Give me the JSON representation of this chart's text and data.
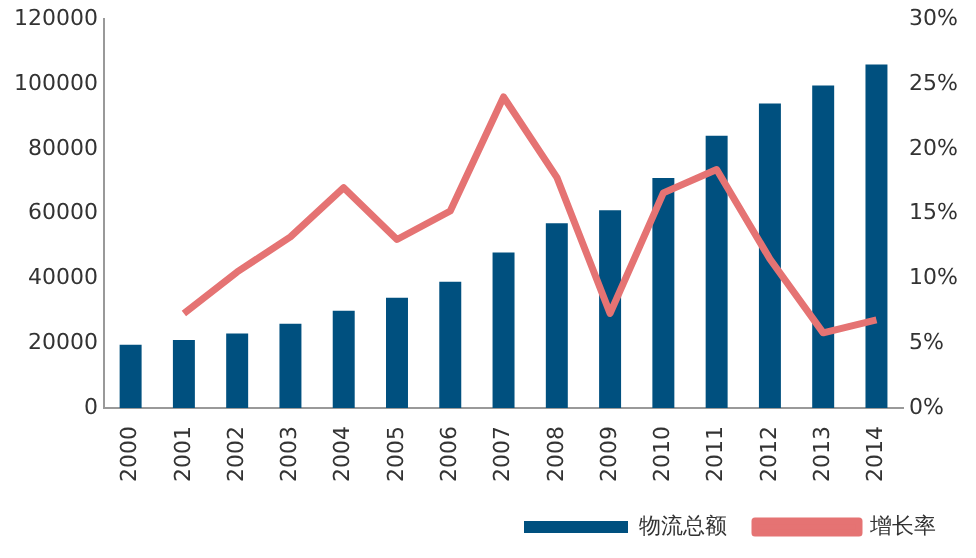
{
  "chart_data": {
    "type": "bar",
    "categories": [
      "2000",
      "2001",
      "2002",
      "2003",
      "2004",
      "2005",
      "2006",
      "2007",
      "2008",
      "2009",
      "2010",
      "2011",
      "2012",
      "2013",
      "2014"
    ],
    "series": [
      {
        "name": "物流总额",
        "color": "#00507f",
        "values": [
          19500,
          21000,
          23000,
          26000,
          30000,
          34000,
          39000,
          48000,
          57000,
          61000,
          71000,
          84000,
          94000,
          99500,
          106000
        ]
      },
      {
        "name": "增长率",
        "type": "line",
        "axis": "y2",
        "color": "#e57373",
        "marker": "none",
        "values": [
          null,
          7.3,
          10.5,
          13.2,
          17,
          13,
          15.2,
          24,
          17.8,
          7.3,
          16.6,
          18.4,
          11.5,
          5.8,
          6.8
        ]
      }
    ],
    "ylim": [
      0,
      120000
    ],
    "yticks": [
      0,
      20000,
      40000,
      60000,
      80000,
      100000,
      120000
    ],
    "y2lim": [
      0,
      30
    ],
    "y2ticks": [
      {
        "value": 0,
        "label": "0%"
      },
      {
        "value": 5,
        "label": "5%"
      },
      {
        "value": 10,
        "label": "10%"
      },
      {
        "value": 15,
        "label": "15%"
      },
      {
        "value": 20,
        "label": "20%"
      },
      {
        "value": 25,
        "label": "25%"
      },
      {
        "value": 30,
        "label": "30%"
      }
    ],
    "grid": false,
    "legend": "bottom"
  }
}
